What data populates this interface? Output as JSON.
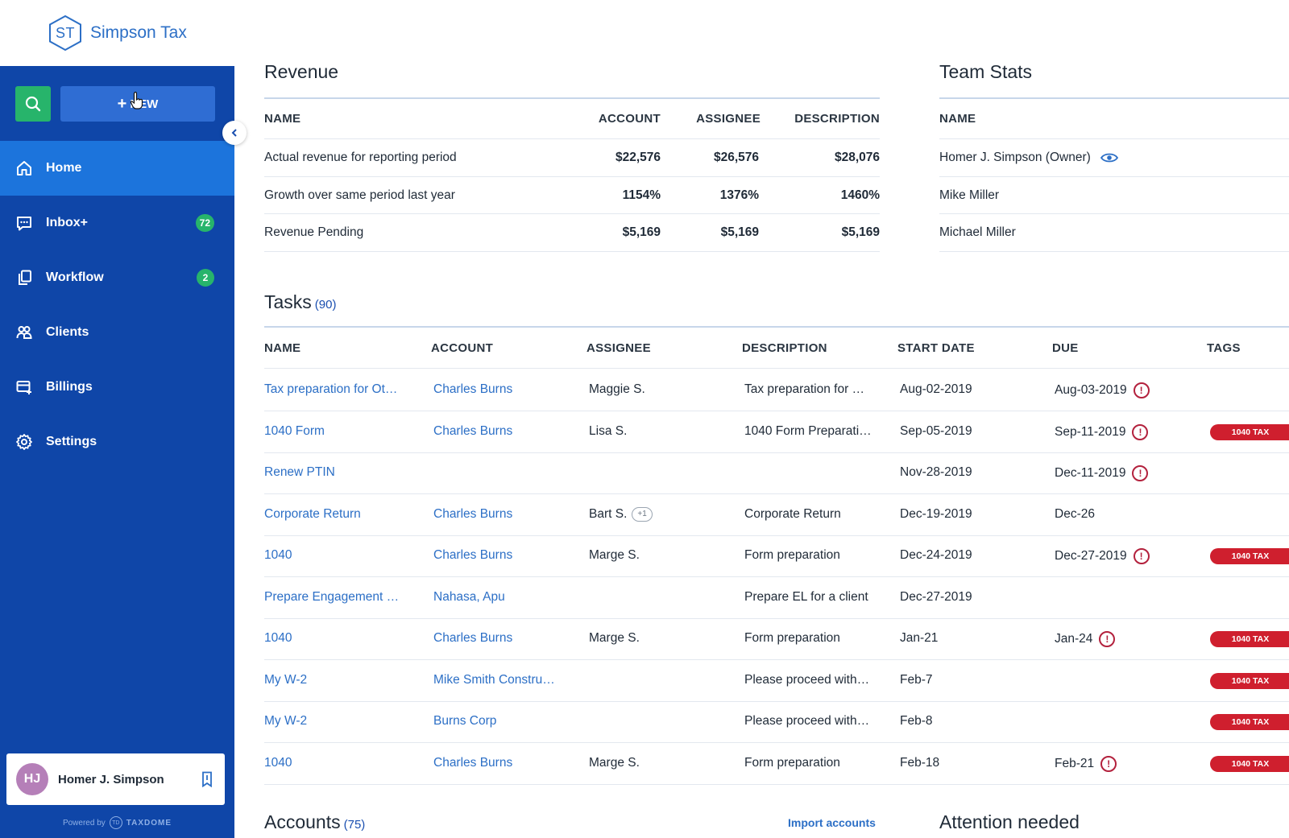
{
  "brand": {
    "initials": "ST",
    "name": "Simpson Tax"
  },
  "sidebar": {
    "new_label": "NEW",
    "items": [
      {
        "label": "Home",
        "icon": "home-icon",
        "badge": null,
        "active": true
      },
      {
        "label": "Inbox+",
        "icon": "inbox-icon",
        "badge": "72"
      },
      {
        "label": "Workflow",
        "icon": "workflow-icon",
        "badge": "2"
      },
      {
        "label": "Clients",
        "icon": "clients-icon",
        "badge": null
      },
      {
        "label": "Billings",
        "icon": "billings-icon",
        "badge": null
      },
      {
        "label": "Settings",
        "icon": "settings-icon",
        "badge": null
      }
    ],
    "user": {
      "initials": "HJ",
      "name": "Homer J. Simpson"
    },
    "powered_by": "Powered by",
    "powered_logo": "TD",
    "powered_name": "TAXDOME"
  },
  "revenue": {
    "title": "Revenue",
    "headers": [
      "NAME",
      "ACCOUNT",
      "ASSIGNEE",
      "DESCRIPTION"
    ],
    "rows": [
      {
        "name": "Actual revenue for reporting period",
        "account": "$22,576",
        "assignee": "$26,576",
        "description": "$28,076"
      },
      {
        "name": "Growth over same period last year",
        "account": "1154%",
        "assignee": "1376%",
        "description": "1460%"
      },
      {
        "name": "Revenue Pending",
        "account": "$5,169",
        "assignee": "$5,169",
        "description": "$5,169"
      }
    ]
  },
  "team_stats": {
    "title": "Team Stats",
    "header": "NAME",
    "rows": [
      "Homer J. Simpson (Owner)",
      "Mike Miller",
      "Michael Miller"
    ]
  },
  "tasks": {
    "title": "Tasks",
    "count": "(90)",
    "headers": [
      "NAME",
      "ACCOUNT",
      "ASSIGNEE",
      "DESCRIPTION",
      "START DATE",
      "DUE",
      "TAGS"
    ],
    "rows": [
      {
        "name": "Tax preparation for Ot…",
        "account": "Charles Burns",
        "assignee": "Maggie S.",
        "extra": "",
        "description": "Tax preparation for …",
        "start": "Aug-02-2019",
        "due": "Aug-03-2019",
        "warn": true,
        "tag": ""
      },
      {
        "name": "1040 Form",
        "account": "Charles Burns",
        "assignee": "Lisa S.",
        "extra": "",
        "description": "1040 Form Preparati…",
        "start": "Sep-05-2019",
        "due": "Sep-11-2019",
        "warn": true,
        "tag": "1040 TAX"
      },
      {
        "name": "Renew PTIN",
        "account": "",
        "assignee": "",
        "extra": "",
        "description": "",
        "start": "Nov-28-2019",
        "due": "Dec-11-2019",
        "warn": true,
        "tag": ""
      },
      {
        "name": "Corporate Return",
        "account": "Charles Burns",
        "assignee": "Bart S.",
        "extra": "+1",
        "description": "Corporate Return",
        "start": "Dec-19-2019",
        "due": "Dec-26",
        "warn": false,
        "tag": ""
      },
      {
        "name": "1040",
        "account": "Charles Burns",
        "assignee": "Marge S.",
        "extra": "",
        "description": "Form preparation",
        "start": "Dec-24-2019",
        "due": "Dec-27-2019",
        "warn": true,
        "tag": "1040 TAX"
      },
      {
        "name": "Prepare Engagement …",
        "account": "Nahasa, Apu",
        "assignee": "",
        "extra": "",
        "description": "Prepare EL for a client",
        "start": "Dec-27-2019",
        "due": "",
        "warn": false,
        "tag": ""
      },
      {
        "name": "1040",
        "account": "Charles Burns",
        "assignee": "Marge S.",
        "extra": "",
        "description": "Form preparation",
        "start": "Jan-21",
        "due": "Jan-24",
        "warn": true,
        "tag": "1040 TAX"
      },
      {
        "name": "My W-2",
        "account": "Mike Smith Constru…",
        "assignee": "",
        "extra": "",
        "description": "Please proceed with…",
        "start": "Feb-7",
        "due": "",
        "warn": false,
        "tag": "1040 TAX"
      },
      {
        "name": "My W-2",
        "account": "Burns Corp",
        "assignee": "",
        "extra": "",
        "description": "Please proceed with…",
        "start": "Feb-8",
        "due": "",
        "warn": false,
        "tag": "1040 TAX"
      },
      {
        "name": "1040",
        "account": "Charles Burns",
        "assignee": "Marge S.",
        "extra": "",
        "description": "Form preparation",
        "start": "Feb-18",
        "due": "Feb-21",
        "warn": true,
        "tag": "1040 TAX"
      }
    ]
  },
  "accounts": {
    "title": "Accounts",
    "count": "(75)",
    "import_label": "Import accounts"
  },
  "attention": {
    "title": "Attention needed"
  },
  "colors": {
    "sidebar": "#0f46a8",
    "active": "#1c74dc",
    "accent_green": "#27b46b",
    "tag_red": "#cf1f2e",
    "link": "#2c6fc6"
  }
}
